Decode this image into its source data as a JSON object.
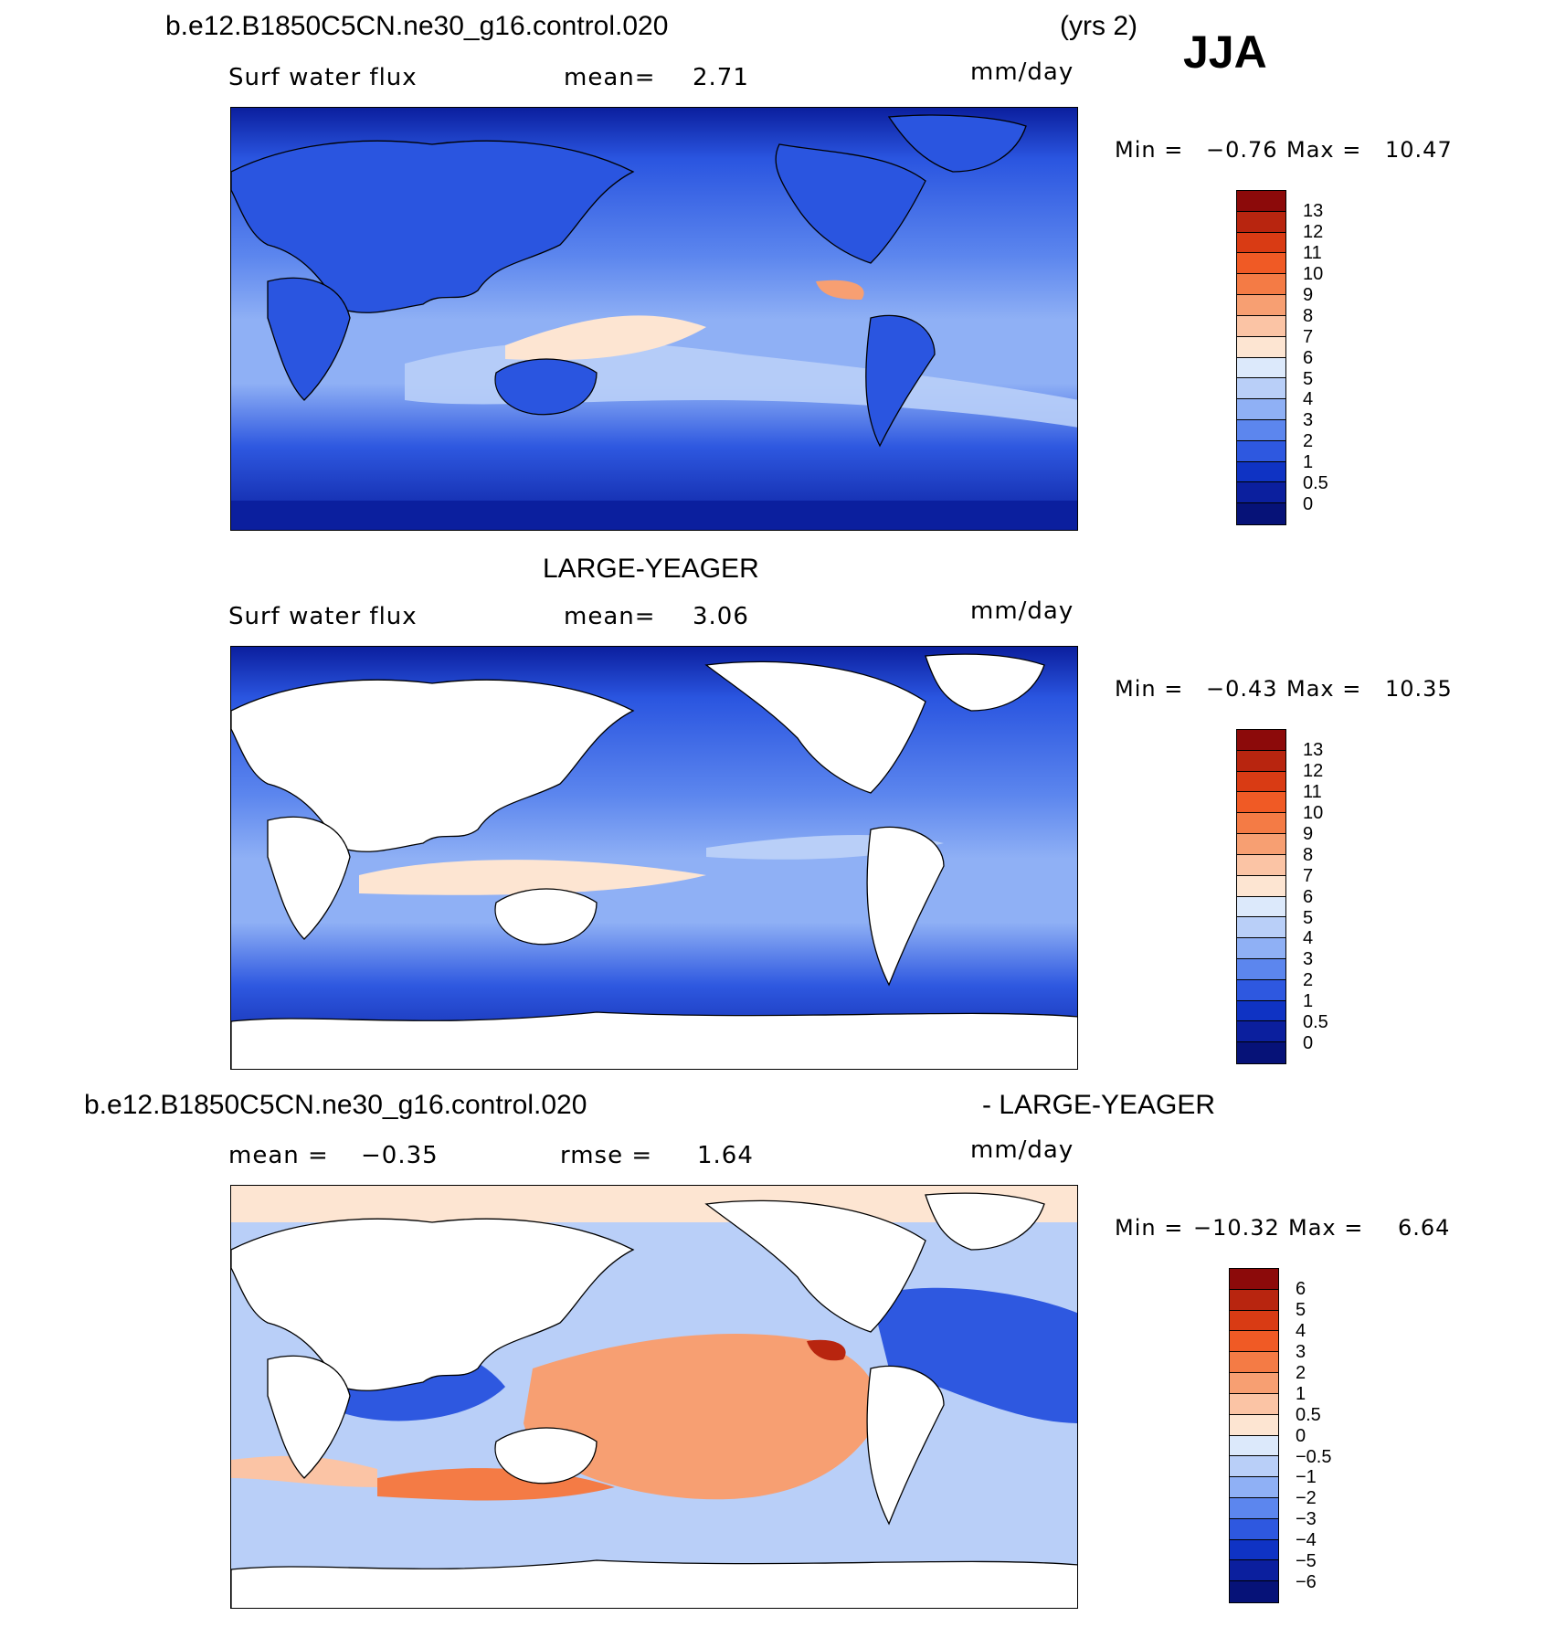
{
  "header": {
    "case_name": "b.e12.B1850C5CN.ne30_g16.control.020",
    "years": "(yrs 2)",
    "season": "JJA"
  },
  "colors": {
    "ocean_blue_dark": "#0b1f9e",
    "ocean_blue": "#2a55e0",
    "ocean_mid": "#4f7ff0",
    "ocean_light": "#a8c4fb",
    "pale": "#dcebff",
    "warm_pale": "#fcd9c2",
    "warm": "#f49a72",
    "coast": "#000000"
  },
  "panels": [
    {
      "id": "model",
      "title": "",
      "variable": "Surf  water  flux",
      "stat1_label": "mean=",
      "stat1_value": "2.71",
      "units": "mm/day",
      "min_label": "Min  =",
      "min_value": "−0.76",
      "max_label": "Max  =",
      "max_value": "10.47",
      "colorbar": {
        "labels": [
          "13",
          "12",
          "11",
          "10",
          "9",
          "8",
          "7",
          "6",
          "5",
          "4",
          "3",
          "2",
          "1",
          "0.5",
          "0"
        ],
        "colors": [
          "#8c0a0a",
          "#b8250f",
          "#d93b14",
          "#f05a25",
          "#f47b45",
          "#f79f72",
          "#fbc4a5",
          "#fde5d2",
          "#dce9fb",
          "#b9cff8",
          "#8fb0f5",
          "#5c86ee",
          "#2e58e0",
          "#0f33c4",
          "#0b1f9e",
          "#061278"
        ]
      }
    },
    {
      "id": "obs",
      "title": "LARGE-YEAGER",
      "variable": "Surf  water  flux",
      "stat1_label": "mean=",
      "stat1_value": "3.06",
      "units": "mm/day",
      "min_label": "Min  =",
      "min_value": "−0.43",
      "max_label": "Max  =",
      "max_value": "10.35",
      "colorbar": {
        "labels": [
          "13",
          "12",
          "11",
          "10",
          "9",
          "8",
          "7",
          "6",
          "5",
          "4",
          "3",
          "2",
          "1",
          "0.5",
          "0"
        ],
        "colors": [
          "#8c0a0a",
          "#b8250f",
          "#d93b14",
          "#f05a25",
          "#f47b45",
          "#f79f72",
          "#fbc4a5",
          "#fde5d2",
          "#dce9fb",
          "#b9cff8",
          "#8fb0f5",
          "#5c86ee",
          "#2e58e0",
          "#0f33c4",
          "#0b1f9e",
          "#061278"
        ]
      }
    },
    {
      "id": "diff",
      "title_left": "b.e12.B1850C5CN.ne30_g16.control.020",
      "title_right": "- LARGE-YEAGER",
      "stat1_label": "mean  =",
      "stat1_value": "−0.35",
      "stat2_label": "rmse  =",
      "stat2_value": "1.64",
      "units": "mm/day",
      "min_label": "Min  =",
      "min_value": "−10.32",
      "max_label": "Max  =",
      "max_value": "6.64",
      "colorbar": {
        "labels": [
          "6",
          "5",
          "4",
          "3",
          "2",
          "1",
          "0.5",
          "0",
          "−0.5",
          "−1",
          "−2",
          "−3",
          "−4",
          "−5",
          "−6"
        ],
        "colors": [
          "#8c0a0a",
          "#b8250f",
          "#d93b14",
          "#f05a25",
          "#f47b45",
          "#f79f72",
          "#fbc4a5",
          "#fde5d2",
          "#dce9fb",
          "#b9cff8",
          "#8fb0f5",
          "#5c86ee",
          "#2e58e0",
          "#0f33c4",
          "#0b1f9e",
          "#061278"
        ]
      }
    }
  ]
}
